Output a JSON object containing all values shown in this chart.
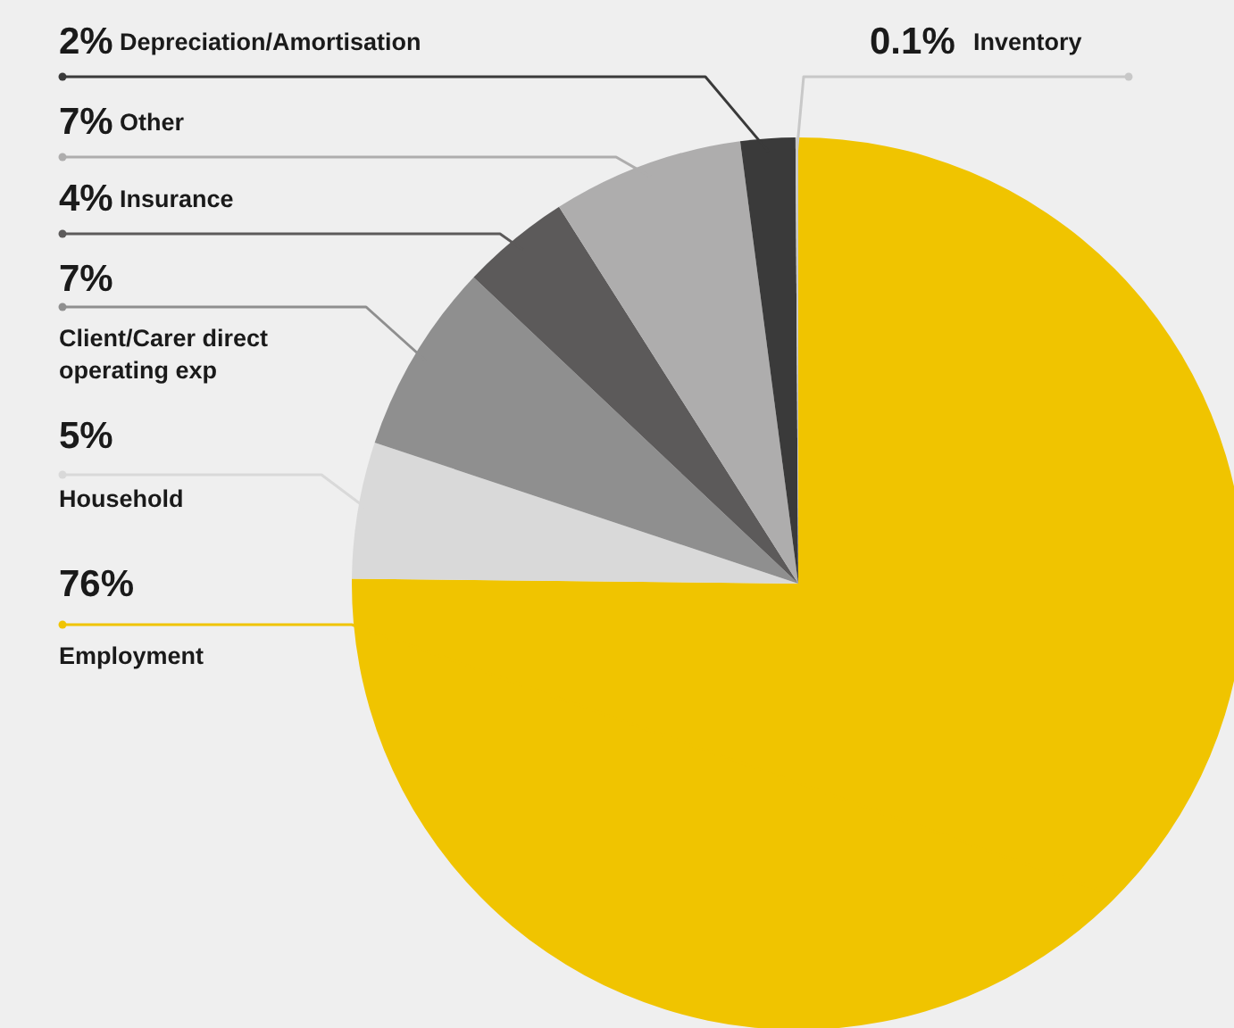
{
  "chart_data": {
    "type": "pie",
    "legend": "left",
    "value_labels": [
      "76%",
      "5%",
      "7%",
      "4%",
      "7%",
      "2%",
      "0.1%"
    ],
    "categories": [
      "Employment",
      "Household",
      "Client/Carer direct operating exp",
      "Insurance",
      "Other",
      "Depreciation/Amortisation",
      "Inventory"
    ],
    "values": [
      76,
      5,
      7,
      4,
      7,
      2,
      0.1
    ],
    "colors": [
      "#f0c400",
      "#d9d9d9",
      "#8f8f8f",
      "#5c5a5a",
      "#aeadad",
      "#3a3a3a",
      "#c8c8c8"
    ]
  }
}
